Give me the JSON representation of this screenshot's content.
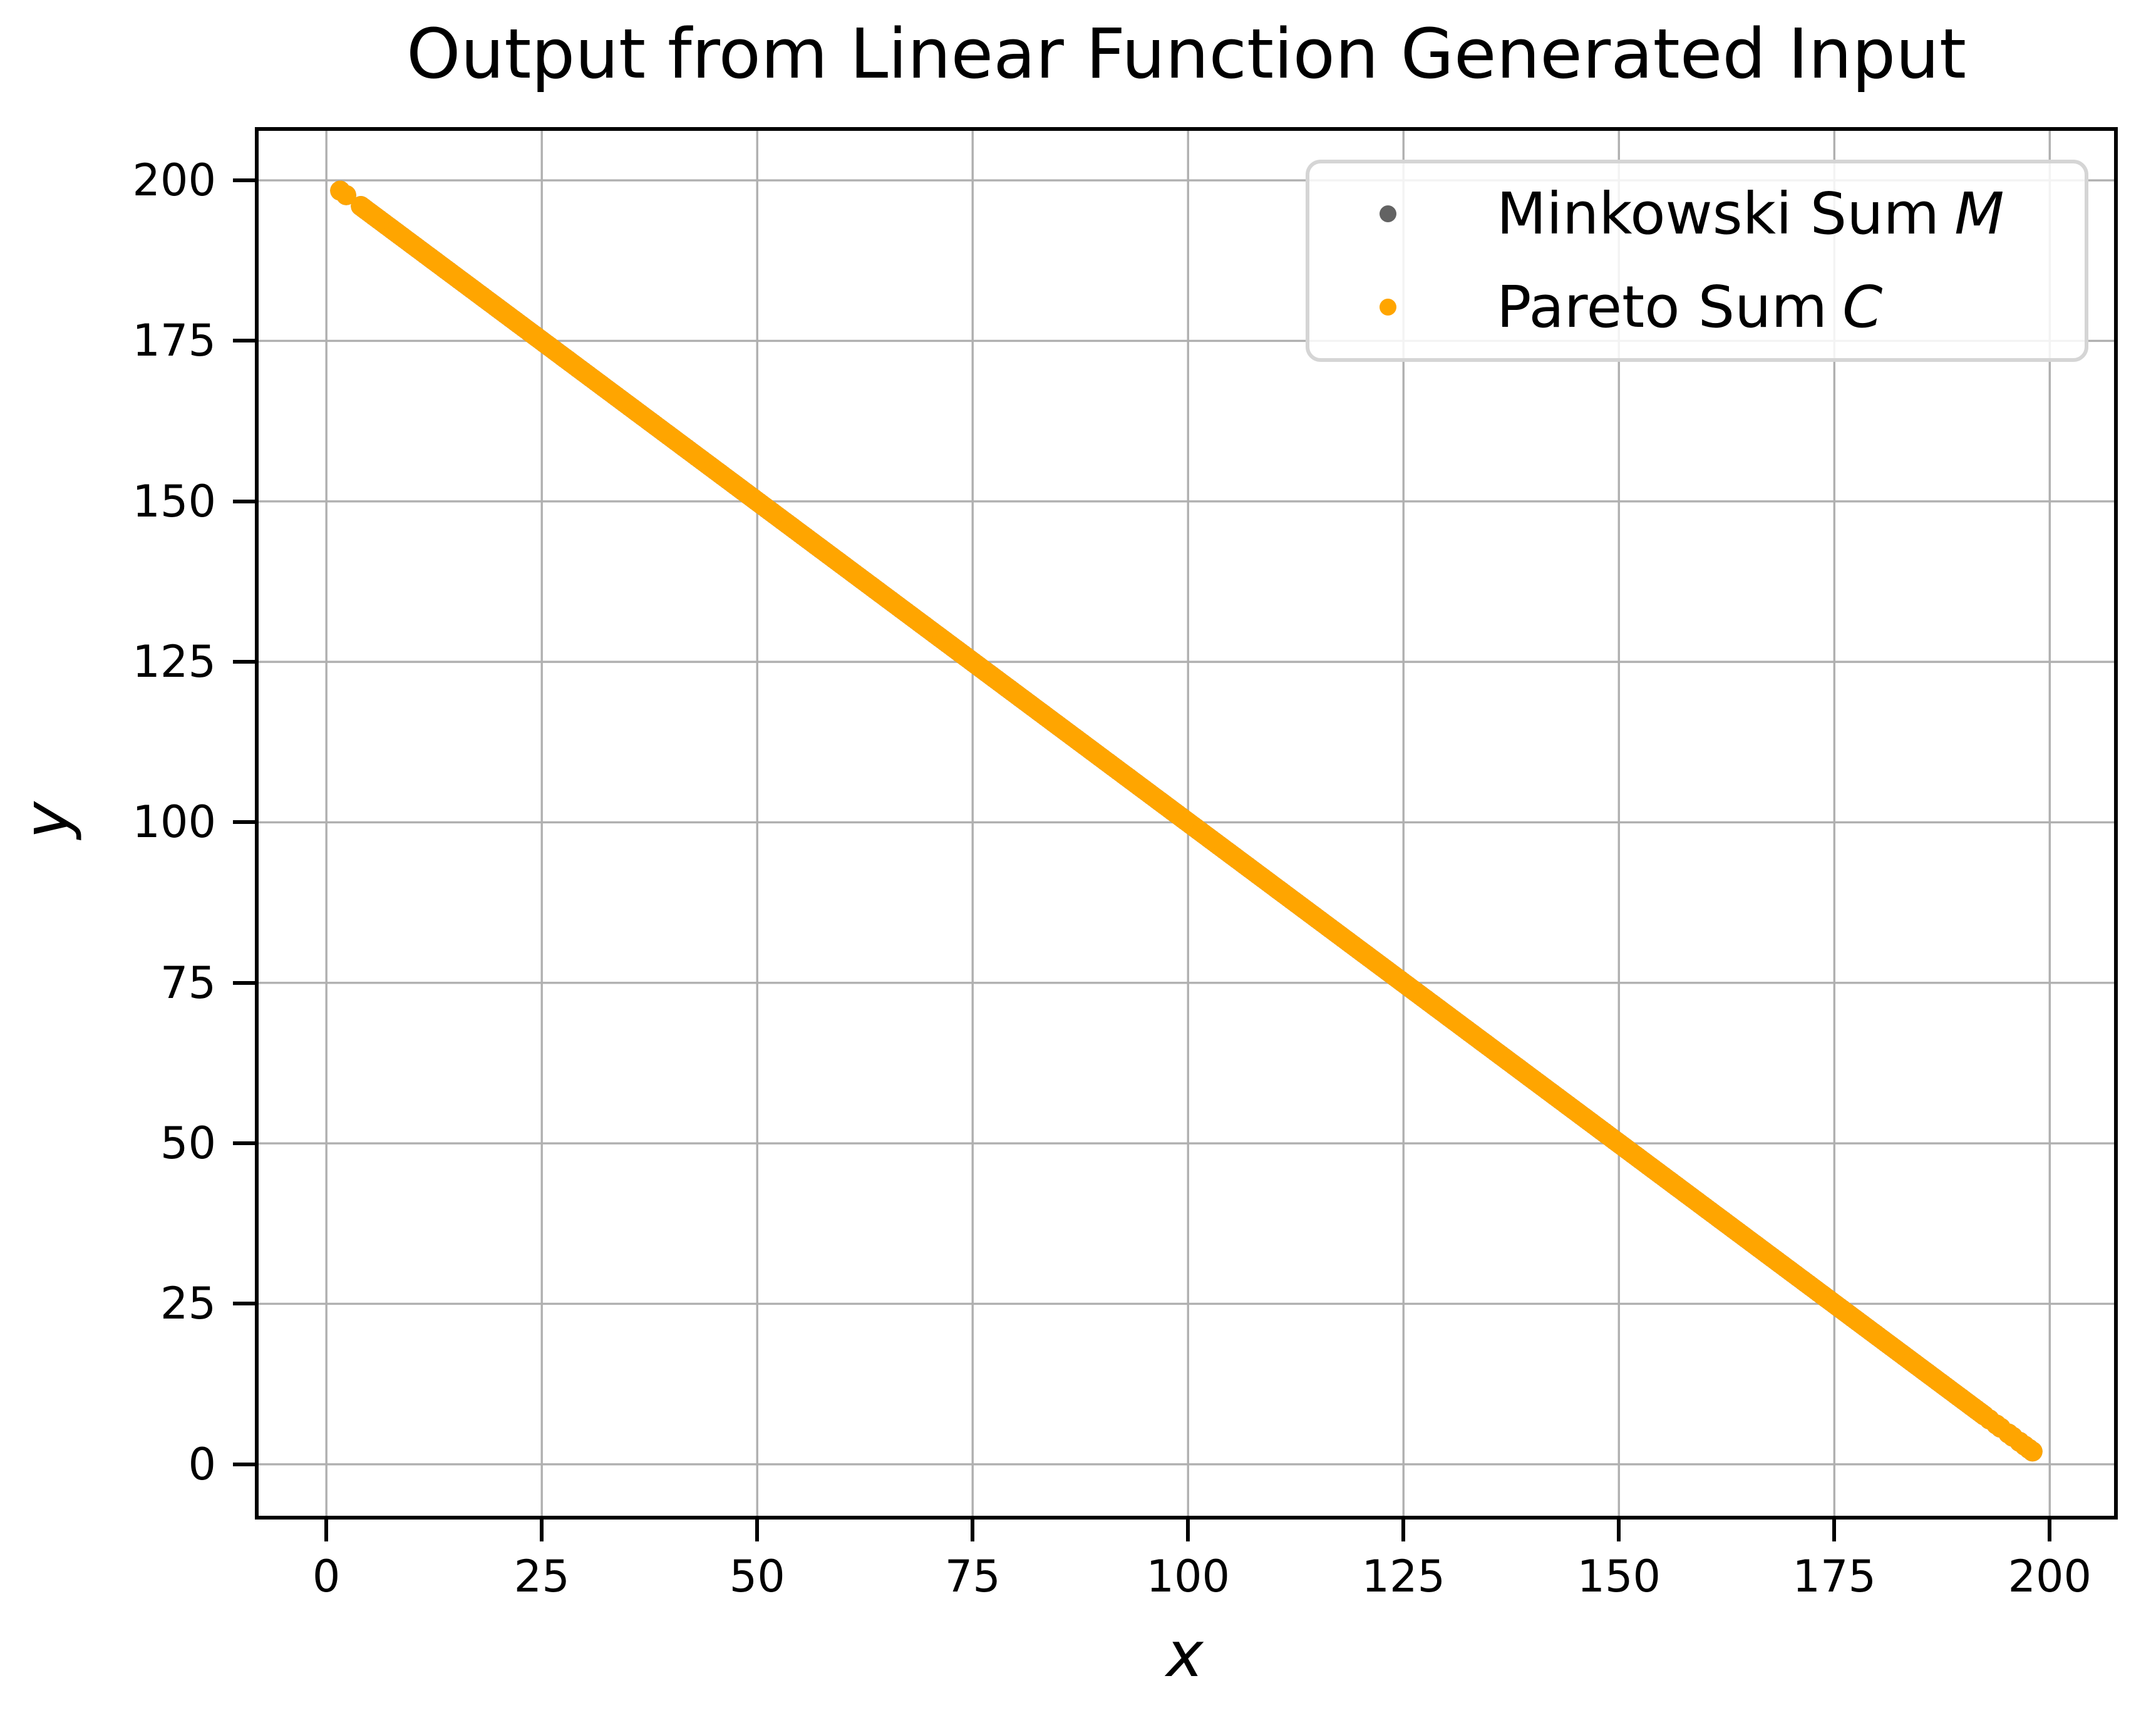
{
  "title": "Output from Linear Function Generated Input",
  "axes": {
    "xlabel": "x",
    "ylabel": "y",
    "xticks": [
      0,
      25,
      50,
      75,
      100,
      125,
      150,
      175,
      200
    ],
    "yticks": [
      0,
      25,
      50,
      75,
      100,
      125,
      150,
      175,
      200
    ],
    "xlim": [
      -8.3,
      207.9
    ],
    "ylim": [
      -8.6,
      208.3
    ]
  },
  "legend": {
    "position": "upper right",
    "entries": [
      {
        "label": "Minkowski Sum",
        "math_symbol": "M",
        "color": "#636363"
      },
      {
        "label": "Pareto Sum",
        "math_symbol": "C",
        "color": "#FFA500"
      }
    ]
  },
  "colors": {
    "minkowski_gray": "#636363",
    "pareto_orange": "#FFA500",
    "gridline": "#b0b0b0",
    "spine": "#000000",
    "legend_border": "#d5d5d5"
  },
  "chart_data": {
    "type": "scatter",
    "title": "Output from Linear Function Generated Input",
    "xlabel": "x",
    "ylabel": "y",
    "xlim": [
      -8.3,
      207.9
    ],
    "ylim": [
      -8.6,
      208.3
    ],
    "xticks": [
      0,
      25,
      50,
      75,
      100,
      125,
      150,
      175,
      200
    ],
    "yticks": [
      0,
      25,
      50,
      75,
      100,
      125,
      150,
      175,
      200
    ],
    "grid": true,
    "legend_position": "upper right",
    "relation": "y = 200 - x (both series lie on this anti-diagonal line)",
    "first_point": [
      1.6,
      198.4
    ],
    "last_point": [
      198.0,
      2.0
    ],
    "points_x_segments": [
      {
        "type": "list",
        "values": [
          1.6,
          2.3
        ]
      },
      {
        "type": "range",
        "from": 4.0,
        "to": 192.6,
        "step": 0.3
      },
      {
        "type": "list",
        "values": [
          193.0,
          193.8,
          194.3,
          195.2,
          195.7,
          196.5,
          197.1,
          197.6,
          198.0
        ]
      }
    ],
    "y_rule": "200 - x",
    "marker_radius_px": 16,
    "series": [
      {
        "name": "Minkowski Sum M",
        "color": "#636363",
        "draw_order": 1,
        "note": "fully covered by Pareto Sum C points"
      },
      {
        "name": "Pareto Sum C",
        "color": "#FFA500",
        "draw_order": 2
      }
    ]
  }
}
